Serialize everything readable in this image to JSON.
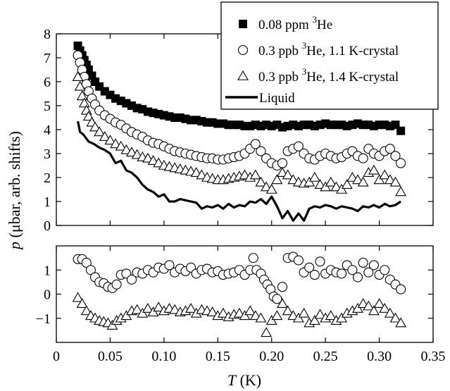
{
  "chart_data": [
    {
      "type": "scatter",
      "panel": "top",
      "xlim": [
        0,
        0.35
      ],
      "ylim": [
        0,
        8
      ],
      "yticks": [
        0,
        1,
        2,
        3,
        4,
        5,
        6,
        7,
        8
      ],
      "yticklabels": [
        "0",
        "1",
        "2",
        "3",
        "4",
        "5",
        "6",
        "7",
        "8"
      ],
      "legend_position": "top-right",
      "series": [
        {
          "name": "0.08 ppm ³He",
          "marker": "filled-square",
          "color": "#000000",
          "x": [
            0.02,
            0.022,
            0.024,
            0.026,
            0.028,
            0.03,
            0.033,
            0.036,
            0.04,
            0.045,
            0.05,
            0.055,
            0.06,
            0.065,
            0.07,
            0.075,
            0.08,
            0.085,
            0.09,
            0.095,
            0.1,
            0.105,
            0.11,
            0.115,
            0.12,
            0.125,
            0.13,
            0.135,
            0.14,
            0.145,
            0.15,
            0.155,
            0.16,
            0.165,
            0.17,
            0.175,
            0.18,
            0.185,
            0.19,
            0.195,
            0.2,
            0.205,
            0.21,
            0.215,
            0.22,
            0.225,
            0.23,
            0.235,
            0.24,
            0.245,
            0.25,
            0.255,
            0.26,
            0.265,
            0.27,
            0.275,
            0.28,
            0.285,
            0.29,
            0.295,
            0.3,
            0.305,
            0.31,
            0.315,
            0.32
          ],
          "y": [
            7.5,
            7.3,
            7.1,
            6.9,
            6.7,
            6.5,
            6.25,
            6.0,
            5.8,
            5.6,
            5.45,
            5.3,
            5.2,
            5.1,
            5.0,
            4.9,
            4.85,
            4.75,
            4.7,
            4.65,
            4.6,
            4.55,
            4.5,
            4.5,
            4.45,
            4.4,
            4.4,
            4.35,
            4.3,
            4.3,
            4.25,
            4.25,
            4.2,
            4.2,
            4.2,
            4.15,
            4.15,
            4.2,
            4.15,
            4.2,
            4.15,
            4.2,
            4.1,
            4.15,
            4.2,
            4.15,
            4.2,
            4.2,
            4.15,
            4.2,
            4.25,
            4.2,
            4.2,
            4.2,
            4.15,
            4.2,
            4.25,
            4.2,
            4.2,
            4.15,
            4.2,
            4.2,
            4.15,
            4.2,
            3.95
          ]
        },
        {
          "name": "0.3 ppb ³He, 1.1 K-crystal",
          "marker": "open-circle",
          "color": "#000000",
          "x": [
            0.02,
            0.022,
            0.024,
            0.026,
            0.028,
            0.03,
            0.033,
            0.036,
            0.04,
            0.045,
            0.05,
            0.055,
            0.06,
            0.065,
            0.07,
            0.075,
            0.08,
            0.085,
            0.09,
            0.095,
            0.1,
            0.105,
            0.11,
            0.115,
            0.12,
            0.125,
            0.13,
            0.135,
            0.14,
            0.145,
            0.15,
            0.155,
            0.16,
            0.165,
            0.17,
            0.175,
            0.18,
            0.185,
            0.19,
            0.195,
            0.2,
            0.205,
            0.21,
            0.215,
            0.22,
            0.225,
            0.23,
            0.235,
            0.24,
            0.245,
            0.25,
            0.255,
            0.26,
            0.265,
            0.27,
            0.275,
            0.28,
            0.285,
            0.29,
            0.295,
            0.3,
            0.305,
            0.31,
            0.315,
            0.32
          ],
          "y": [
            7.1,
            6.8,
            6.5,
            6.2,
            5.9,
            5.6,
            5.3,
            5.05,
            4.8,
            4.6,
            4.45,
            4.3,
            4.2,
            4.05,
            3.9,
            3.8,
            3.7,
            3.55,
            3.45,
            3.4,
            3.3,
            3.2,
            3.1,
            3.05,
            3.0,
            2.95,
            2.9,
            2.85,
            2.8,
            2.8,
            2.75,
            2.75,
            2.8,
            2.85,
            2.9,
            3.0,
            3.2,
            3.4,
            3.1,
            2.8,
            2.6,
            2.5,
            2.6,
            3.1,
            3.2,
            3.3,
            3.0,
            2.8,
            2.75,
            2.9,
            3.0,
            2.9,
            2.8,
            2.85,
            3.0,
            3.1,
            2.9,
            2.8,
            3.2,
            3.0,
            2.9,
            3.1,
            3.2,
            2.9,
            2.6
          ]
        },
        {
          "name": "0.3 ppb ³He, 1.4 K-crystal",
          "marker": "open-triangle",
          "color": "#000000",
          "x": [
            0.02,
            0.022,
            0.024,
            0.026,
            0.028,
            0.03,
            0.033,
            0.036,
            0.04,
            0.045,
            0.05,
            0.055,
            0.06,
            0.065,
            0.07,
            0.075,
            0.08,
            0.085,
            0.09,
            0.095,
            0.1,
            0.105,
            0.11,
            0.115,
            0.12,
            0.125,
            0.13,
            0.135,
            0.14,
            0.145,
            0.15,
            0.155,
            0.16,
            0.165,
            0.17,
            0.175,
            0.18,
            0.185,
            0.19,
            0.195,
            0.2,
            0.205,
            0.21,
            0.215,
            0.22,
            0.225,
            0.23,
            0.235,
            0.24,
            0.245,
            0.25,
            0.255,
            0.26,
            0.265,
            0.27,
            0.275,
            0.28,
            0.285,
            0.29,
            0.295,
            0.3,
            0.305,
            0.31,
            0.315,
            0.32
          ],
          "y": [
            6.2,
            5.8,
            5.4,
            5.1,
            4.8,
            4.55,
            4.3,
            4.1,
            3.9,
            3.7,
            3.55,
            3.4,
            3.3,
            3.15,
            3.05,
            2.95,
            2.85,
            2.8,
            2.7,
            2.6,
            2.5,
            2.45,
            2.4,
            2.35,
            2.3,
            2.25,
            2.2,
            2.1,
            2.0,
            1.95,
            1.9,
            1.9,
            1.95,
            2.0,
            2.05,
            2.1,
            2.0,
            2.1,
            1.8,
            1.6,
            1.5,
            1.9,
            2.2,
            2.1,
            1.9,
            1.8,
            1.75,
            1.8,
            2.0,
            1.7,
            1.6,
            1.8,
            1.6,
            1.5,
            1.7,
            2.0,
            1.9,
            1.8,
            2.2,
            2.3,
            1.9,
            2.1,
            1.9,
            1.8,
            1.4
          ]
        },
        {
          "name": "Liquid",
          "marker": "line",
          "color": "#000000",
          "x": [
            0.02,
            0.022,
            0.025,
            0.03,
            0.035,
            0.04,
            0.045,
            0.05,
            0.055,
            0.06,
            0.065,
            0.07,
            0.075,
            0.08,
            0.085,
            0.09,
            0.095,
            0.1,
            0.105,
            0.11,
            0.115,
            0.12,
            0.125,
            0.13,
            0.135,
            0.14,
            0.145,
            0.15,
            0.155,
            0.16,
            0.165,
            0.17,
            0.175,
            0.18,
            0.185,
            0.19,
            0.195,
            0.2,
            0.205,
            0.21,
            0.215,
            0.22,
            0.225,
            0.23,
            0.235,
            0.24,
            0.245,
            0.25,
            0.255,
            0.26,
            0.265,
            0.27,
            0.275,
            0.28,
            0.285,
            0.29,
            0.295,
            0.3,
            0.305,
            0.31,
            0.315,
            0.32
          ],
          "y": [
            4.35,
            3.9,
            3.8,
            3.5,
            3.4,
            3.25,
            3.15,
            3.0,
            2.6,
            2.7,
            2.3,
            2.2,
            2.0,
            1.7,
            1.5,
            1.4,
            1.2,
            1.3,
            1.0,
            1.0,
            1.1,
            1.05,
            1.0,
            0.95,
            0.7,
            0.8,
            0.75,
            0.85,
            0.7,
            0.9,
            0.75,
            0.85,
            0.8,
            1.0,
            0.95,
            1.1,
            0.9,
            1.2,
            0.8,
            0.3,
            0.6,
            0.2,
            0.5,
            0.2,
            0.7,
            0.8,
            0.75,
            0.85,
            0.8,
            0.7,
            0.8,
            0.75,
            0.7,
            0.6,
            0.8,
            0.75,
            0.85,
            0.75,
            0.9,
            0.8,
            0.85,
            1.0
          ]
        }
      ]
    },
    {
      "type": "scatter",
      "panel": "bottom",
      "xlim": [
        0,
        0.35
      ],
      "ylim": [
        -2,
        2
      ],
      "yticks": [
        -1,
        0,
        1
      ],
      "yticklabels": [
        "−1",
        "0",
        "1"
      ],
      "xticks": [
        0,
        0.05,
        0.1,
        0.15,
        0.2,
        0.25,
        0.3,
        0.35
      ],
      "xticklabels": [
        "0",
        "0.05",
        "0.10",
        "0.15",
        "0.20",
        "0.25",
        "0.30",
        "0.35"
      ],
      "series": [
        {
          "name": "0.3 ppb ³He, 1.1 K-crystal",
          "marker": "open-circle",
          "color": "#000000",
          "x": [
            0.02,
            0.024,
            0.028,
            0.032,
            0.036,
            0.04,
            0.044,
            0.048,
            0.052,
            0.056,
            0.06,
            0.065,
            0.07,
            0.075,
            0.08,
            0.085,
            0.09,
            0.095,
            0.1,
            0.105,
            0.11,
            0.115,
            0.12,
            0.125,
            0.13,
            0.135,
            0.14,
            0.145,
            0.15,
            0.155,
            0.16,
            0.165,
            0.17,
            0.175,
            0.18,
            0.183,
            0.186,
            0.19,
            0.193,
            0.196,
            0.199,
            0.202,
            0.205,
            0.21,
            0.215,
            0.22,
            0.225,
            0.23,
            0.235,
            0.24,
            0.245,
            0.25,
            0.255,
            0.26,
            0.265,
            0.27,
            0.275,
            0.28,
            0.285,
            0.29,
            0.295,
            0.3,
            0.305,
            0.31,
            0.315,
            0.32
          ],
          "y": [
            1.45,
            1.45,
            1.3,
            1.0,
            0.7,
            0.5,
            0.45,
            0.3,
            0.25,
            0.4,
            0.8,
            0.85,
            0.6,
            0.9,
            0.85,
            1.0,
            0.9,
            1.1,
            1.05,
            1.2,
            0.9,
            1.05,
            0.95,
            1.1,
            0.85,
            1.0,
            1.05,
            0.9,
            0.95,
            0.8,
            0.85,
            0.9,
            1.0,
            0.8,
            1.0,
            1.5,
            1.0,
            0.85,
            0.6,
            0.4,
            0.2,
            -0.1,
            -0.2,
            0.3,
            1.5,
            1.55,
            1.4,
            0.9,
            1.1,
            0.8,
            1.35,
            0.85,
            1.0,
            0.9,
            0.85,
            1.2,
            1.0,
            0.7,
            1.3,
            0.9,
            1.2,
            0.8,
            1.0,
            0.6,
            0.4,
            0.2
          ]
        },
        {
          "name": "0.3 ppb ³He, 1.4 K-crystal",
          "marker": "open-triangle",
          "color": "#000000",
          "x": [
            0.02,
            0.024,
            0.028,
            0.032,
            0.036,
            0.04,
            0.044,
            0.048,
            0.052,
            0.056,
            0.06,
            0.065,
            0.07,
            0.075,
            0.08,
            0.085,
            0.09,
            0.095,
            0.1,
            0.105,
            0.11,
            0.115,
            0.12,
            0.125,
            0.13,
            0.135,
            0.14,
            0.145,
            0.15,
            0.155,
            0.16,
            0.165,
            0.17,
            0.175,
            0.18,
            0.185,
            0.19,
            0.195,
            0.2,
            0.205,
            0.21,
            0.215,
            0.22,
            0.225,
            0.23,
            0.235,
            0.24,
            0.245,
            0.25,
            0.255,
            0.26,
            0.265,
            0.27,
            0.275,
            0.28,
            0.285,
            0.29,
            0.295,
            0.3,
            0.305,
            0.31,
            0.315,
            0.32
          ],
          "y": [
            -0.15,
            -0.4,
            -0.7,
            -0.9,
            -1.0,
            -1.1,
            -1.15,
            -1.2,
            -1.3,
            -1.1,
            -1.0,
            -0.9,
            -0.7,
            -0.65,
            -0.8,
            -0.6,
            -0.75,
            -0.55,
            -0.7,
            -0.6,
            -0.65,
            -0.75,
            -0.7,
            -0.6,
            -0.8,
            -0.65,
            -0.7,
            -0.75,
            -0.9,
            -0.8,
            -0.95,
            -0.85,
            -0.8,
            -0.9,
            -0.7,
            -0.9,
            -1.0,
            -1.6,
            -1.1,
            -0.9,
            -0.4,
            -0.7,
            -0.9,
            -1.0,
            -0.8,
            -1.2,
            -1.1,
            -0.85,
            -1.0,
            -0.9,
            -1.1,
            -1.0,
            -0.8,
            -0.7,
            -0.6,
            -0.4,
            -0.5,
            -0.7,
            -0.4,
            -0.6,
            -0.8,
            -1.0,
            -1.2
          ]
        }
      ]
    }
  ],
  "axes": {
    "ylabel_var": "p",
    "ylabel_rest": "  (μbar, arb. shifts)",
    "xlabel_var": "T",
    "xlabel_rest": "  (K)"
  },
  "legend": {
    "items": [
      {
        "pre": "0.08 ppm ",
        "sup": "3",
        "post": "He",
        "marker": "filled-square"
      },
      {
        "pre": "0.3 ppb ",
        "sup": "3",
        "post": "He, 1.1 K-crystal",
        "marker": "open-circle"
      },
      {
        "pre": "0.3 ppb ",
        "sup": "3",
        "post": "He, 1.4 K-crystal",
        "marker": "open-triangle"
      },
      {
        "pre": "Liquid",
        "sup": "",
        "post": "",
        "marker": "line"
      }
    ]
  }
}
